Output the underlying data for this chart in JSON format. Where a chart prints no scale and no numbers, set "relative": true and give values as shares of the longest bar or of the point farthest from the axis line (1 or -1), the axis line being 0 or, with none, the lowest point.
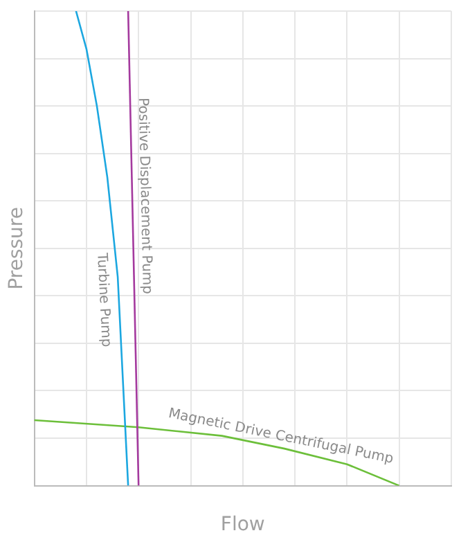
{
  "chart_data": {
    "type": "line",
    "xlabel": "Flow",
    "ylabel": "Pressure",
    "relative": true,
    "grid": true,
    "legend": false,
    "marker": "none",
    "line_style": "solid",
    "categories": [
      null,
      null,
      null,
      null,
      null,
      null,
      null,
      null,
      null,
      null,
      null,
      null,
      null,
      null,
      null,
      null,
      null,
      null,
      null,
      null,
      null,
      null,
      null,
      null,
      null,
      null,
      null,
      null,
      null,
      null,
      null,
      null,
      null,
      null,
      null,
      null,
      null,
      null,
      null,
      null,
      null
    ],
    "series": [
      {
        "name": "Turbine Pump",
        "color": "#1ca7e0",
        "values": [
          null,
          null,
          null,
          null,
          1,
          0.92,
          0.8,
          0.65,
          0.44,
          0,
          null,
          null,
          null,
          null,
          null,
          null,
          null,
          null,
          null,
          null,
          null,
          null,
          null,
          null,
          null,
          null,
          null,
          null,
          null,
          null,
          null,
          null,
          null,
          null,
          null,
          null,
          null,
          null,
          null,
          null,
          null
        ]
      },
      {
        "name": "Positive Displacement Pump",
        "color": "#a43a9e",
        "values": [
          null,
          null,
          null,
          null,
          null,
          null,
          null,
          null,
          null,
          1,
          0,
          null,
          null,
          null,
          null,
          null,
          null,
          null,
          null,
          null,
          null,
          null,
          null,
          null,
          null,
          null,
          null,
          null,
          null,
          null,
          null,
          null,
          null,
          null,
          null,
          null,
          null,
          null,
          null,
          null,
          null
        ]
      },
      {
        "name": "Magnetic Drive Centrifugal Pump",
        "color": "#6cbf3a",
        "values": [
          0.138,
          null,
          null,
          null,
          null,
          null,
          null,
          null,
          null,
          null,
          0.123,
          null,
          null,
          null,
          null,
          null,
          null,
          null,
          0.105,
          null,
          null,
          null,
          null,
          null,
          0.078,
          null,
          null,
          null,
          null,
          null,
          0.045,
          null,
          null,
          null,
          null,
          0,
          null,
          null,
          null,
          null,
          null
        ]
      }
    ]
  }
}
